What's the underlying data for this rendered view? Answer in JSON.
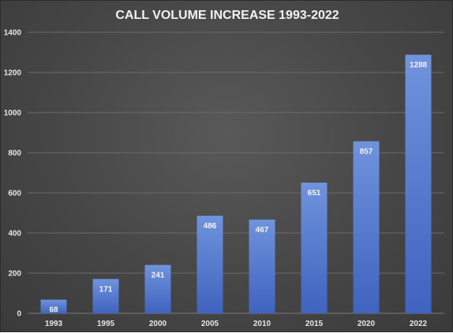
{
  "colors": {
    "bar_top": "#6f93dc",
    "bar_bottom": "#3f63bf",
    "gridline": "#6a6a6a",
    "axis_line": "#7a7a7a"
  },
  "chart_data": {
    "type": "bar",
    "title": "CALL VOLUME INCREASE 1993-2022",
    "xlabel": "",
    "ylabel": "",
    "categories": [
      "1993",
      "1995",
      "2000",
      "2005",
      "2010",
      "2015",
      "2020",
      "2022"
    ],
    "values": [
      68,
      171,
      241,
      486,
      467,
      651,
      857,
      1288
    ],
    "data_labels": [
      "68",
      "171",
      "241",
      "486",
      "467",
      "651",
      "857",
      "1288"
    ],
    "ylim": [
      0,
      1400
    ],
    "yticks": [
      "0",
      "200",
      "400",
      "600",
      "800",
      "1000",
      "1200",
      "1400"
    ],
    "grid": true,
    "legend": "none"
  }
}
